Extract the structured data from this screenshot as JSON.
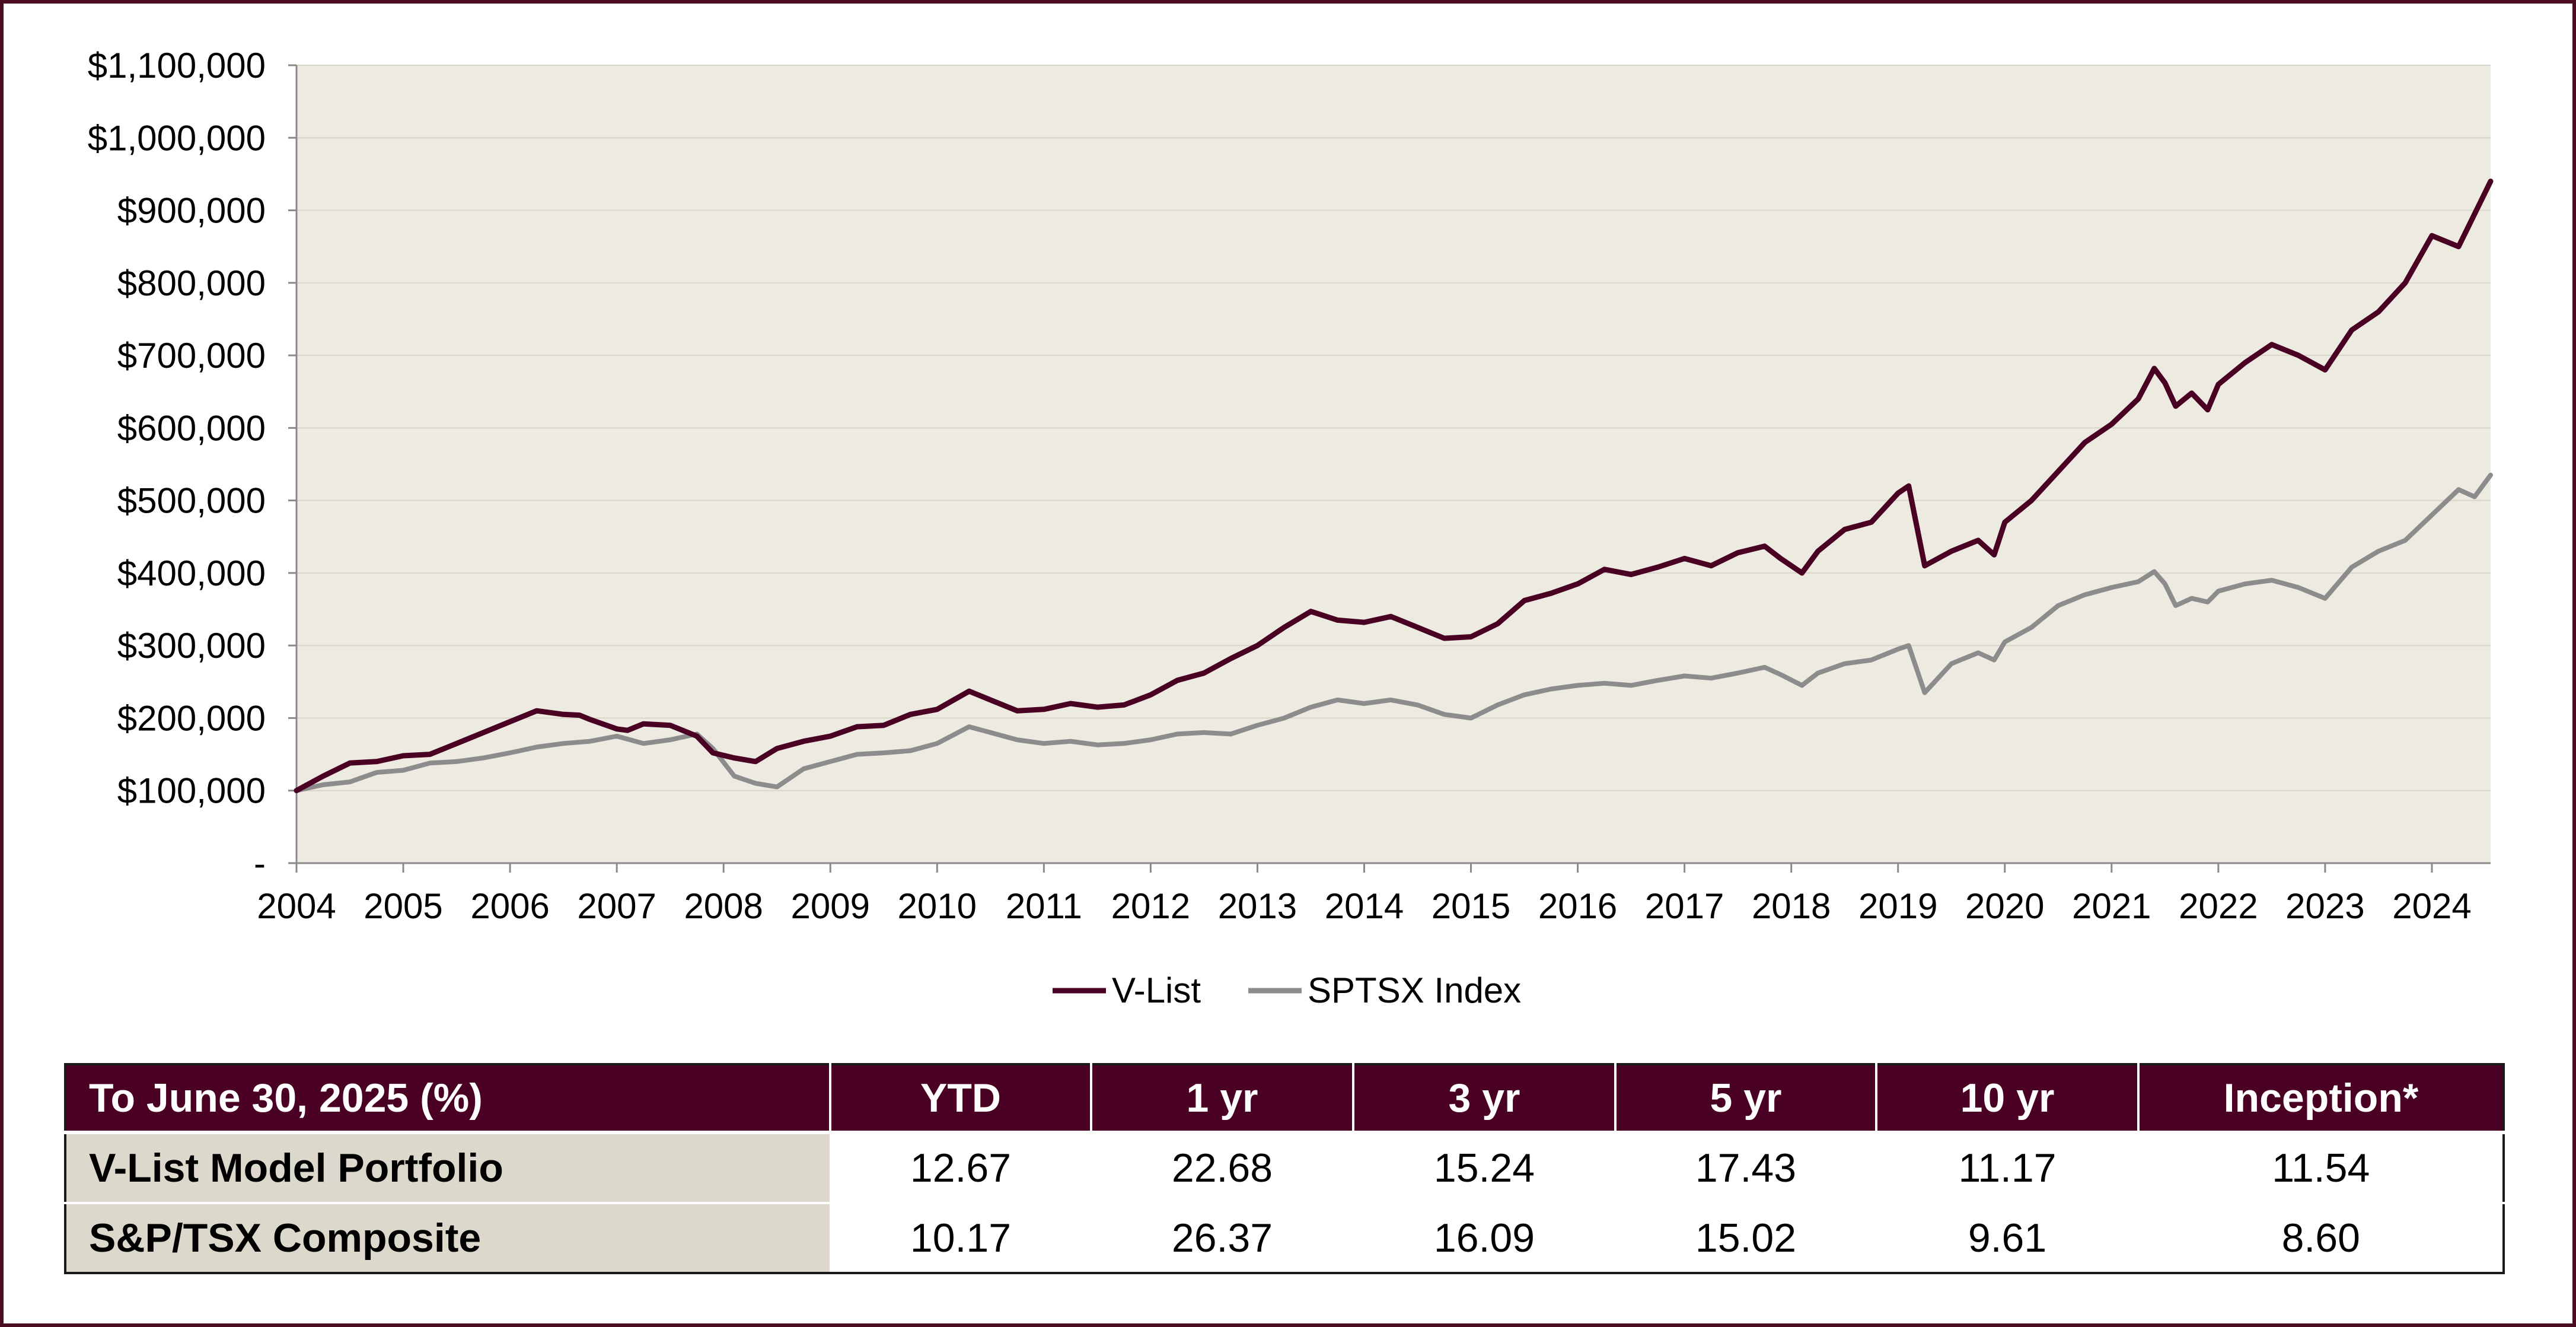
{
  "colors": {
    "frame": "#4a0d23",
    "plot_background": "#edeae1",
    "vlist": "#4a0022",
    "sptsx": "#8c8c8c",
    "table_header": "#4a0022",
    "row_label_bg": "#dcd8cc"
  },
  "chart_data": {
    "type": "line",
    "title": "",
    "xlabel": "",
    "ylabel": "",
    "ylim": [
      0,
      1100000
    ],
    "xlim": [
      2004.0,
      2024.55
    ],
    "y_ticks": [
      0,
      100000,
      200000,
      300000,
      400000,
      500000,
      600000,
      700000,
      800000,
      900000,
      1000000,
      1100000
    ],
    "y_tick_labels": [
      "-",
      "$100,000",
      "$200,000",
      "$300,000",
      "$400,000",
      "$500,000",
      "$600,000",
      "$700,000",
      "$800,000",
      "$900,000",
      "$1,000,000",
      "$1,100,000"
    ],
    "x_ticks": [
      2004,
      2005,
      2006,
      2007,
      2008,
      2009,
      2010,
      2011,
      2012,
      2013,
      2014,
      2015,
      2016,
      2017,
      2018,
      2019,
      2020,
      2021,
      2022,
      2023,
      2024
    ],
    "x_tick_labels": [
      "2004",
      "2005",
      "2006",
      "2007",
      "2008",
      "2009",
      "2010",
      "2011",
      "2012",
      "2013",
      "2014",
      "2015",
      "2016",
      "2017",
      "2018",
      "2019",
      "2020",
      "2021",
      "2022",
      "2023",
      "2024"
    ],
    "grid": true,
    "legend_position": "bottom-center",
    "series": [
      {
        "name": "V-List",
        "x": [
          2004.0,
          2004.25,
          2004.5,
          2004.75,
          2005.0,
          2005.25,
          2005.5,
          2005.75,
          2006.0,
          2006.25,
          2006.5,
          2006.65,
          2006.75,
          2007.0,
          2007.1,
          2007.25,
          2007.5,
          2007.75,
          2007.9,
          2008.1,
          2008.3,
          2008.5,
          2008.75,
          2009.0,
          2009.25,
          2009.5,
          2009.75,
          2010.0,
          2010.3,
          2010.5,
          2010.75,
          2011.0,
          2011.25,
          2011.5,
          2011.75,
          2012.0,
          2012.25,
          2012.5,
          2012.75,
          2013.0,
          2013.25,
          2013.5,
          2013.75,
          2014.0,
          2014.25,
          2014.5,
          2014.75,
          2015.0,
          2015.25,
          2015.5,
          2015.75,
          2016.0,
          2016.25,
          2016.5,
          2016.75,
          2017.0,
          2017.25,
          2017.5,
          2017.75,
          2017.9,
          2018.1,
          2018.25,
          2018.5,
          2018.75,
          2019.0,
          2019.1,
          2019.25,
          2019.5,
          2019.75,
          2019.9,
          2020.0,
          2020.25,
          2020.5,
          2020.75,
          2021.0,
          2021.25,
          2021.4,
          2021.5,
          2021.6,
          2021.75,
          2021.9,
          2022.0,
          2022.25,
          2022.5,
          2022.75,
          2023.0,
          2023.25,
          2023.5,
          2023.75,
          2024.0,
          2024.25,
          2024.4,
          2024.55
        ],
        "y": [
          100000,
          120000,
          138000,
          140000,
          148000,
          150000,
          165000,
          180000,
          195000,
          210000,
          205000,
          204000,
          198000,
          185000,
          183000,
          192000,
          190000,
          175000,
          152000,
          145000,
          140000,
          158000,
          168000,
          175000,
          188000,
          190000,
          205000,
          212000,
          237000,
          225000,
          210000,
          212000,
          220000,
          215000,
          218000,
          232000,
          252000,
          262000,
          282000,
          300000,
          325000,
          347000,
          335000,
          332000,
          340000,
          325000,
          310000,
          312000,
          330000,
          362000,
          372000,
          385000,
          405000,
          398000,
          408000,
          420000,
          410000,
          428000,
          437000,
          420000,
          400000,
          430000,
          460000,
          470000,
          510000,
          520000,
          410000,
          430000,
          445000,
          425000,
          470000,
          500000,
          540000,
          580000,
          605000,
          640000,
          682000,
          662000,
          630000,
          648000,
          625000,
          660000,
          690000,
          715000,
          700000,
          680000,
          735000,
          760000,
          800000,
          865000,
          850000,
          895000,
          940000
        ]
      },
      {
        "name": "SPTSX Index",
        "x": [
          2004.0,
          2004.25,
          2004.5,
          2004.75,
          2005.0,
          2005.25,
          2005.5,
          2005.75,
          2006.0,
          2006.25,
          2006.5,
          2006.75,
          2007.0,
          2007.25,
          2007.5,
          2007.75,
          2007.9,
          2008.1,
          2008.3,
          2008.5,
          2008.75,
          2009.0,
          2009.25,
          2009.5,
          2009.75,
          2010.0,
          2010.3,
          2010.5,
          2010.75,
          2011.0,
          2011.25,
          2011.5,
          2011.75,
          2012.0,
          2012.25,
          2012.5,
          2012.75,
          2013.0,
          2013.25,
          2013.5,
          2013.75,
          2014.0,
          2014.25,
          2014.5,
          2014.75,
          2015.0,
          2015.25,
          2015.5,
          2015.75,
          2016.0,
          2016.25,
          2016.5,
          2016.75,
          2017.0,
          2017.25,
          2017.5,
          2017.75,
          2017.9,
          2018.1,
          2018.25,
          2018.5,
          2018.75,
          2019.0,
          2019.1,
          2019.25,
          2019.5,
          2019.75,
          2019.9,
          2020.0,
          2020.25,
          2020.5,
          2020.75,
          2021.0,
          2021.25,
          2021.4,
          2021.5,
          2021.6,
          2021.75,
          2021.9,
          2022.0,
          2022.25,
          2022.5,
          2022.75,
          2023.0,
          2023.25,
          2023.5,
          2023.75,
          2024.0,
          2024.25,
          2024.4,
          2024.55
        ],
        "y": [
          100000,
          108000,
          112000,
          125000,
          128000,
          138000,
          140000,
          145000,
          152000,
          160000,
          165000,
          168000,
          175000,
          165000,
          170000,
          178000,
          158000,
          120000,
          110000,
          105000,
          130000,
          140000,
          150000,
          152000,
          155000,
          165000,
          188000,
          180000,
          170000,
          165000,
          168000,
          163000,
          165000,
          170000,
          178000,
          180000,
          178000,
          190000,
          200000,
          215000,
          225000,
          220000,
          225000,
          218000,
          205000,
          200000,
          218000,
          232000,
          240000,
          245000,
          248000,
          245000,
          252000,
          258000,
          255000,
          262000,
          270000,
          260000,
          245000,
          262000,
          275000,
          280000,
          295000,
          300000,
          235000,
          275000,
          290000,
          280000,
          305000,
          325000,
          355000,
          370000,
          380000,
          388000,
          402000,
          385000,
          355000,
          365000,
          360000,
          375000,
          385000,
          390000,
          380000,
          365000,
          408000,
          430000,
          445000,
          480000,
          515000,
          505000,
          535000
        ]
      }
    ]
  },
  "legend": {
    "items": [
      "V-List",
      "SPTSX Index"
    ]
  },
  "table": {
    "headers": [
      "To June 30, 2025 (%)",
      "YTD",
      "1 yr",
      "3 yr",
      "5 yr",
      "10 yr",
      "Inception*"
    ],
    "rows": [
      [
        "V-List Model Portfolio",
        "12.67",
        "22.68",
        "15.24",
        "17.43",
        "11.17",
        "11.54"
      ],
      [
        "S&P/TSX Composite",
        "10.17",
        "26.37",
        "16.09",
        "15.02",
        "9.61",
        "8.60"
      ]
    ]
  }
}
